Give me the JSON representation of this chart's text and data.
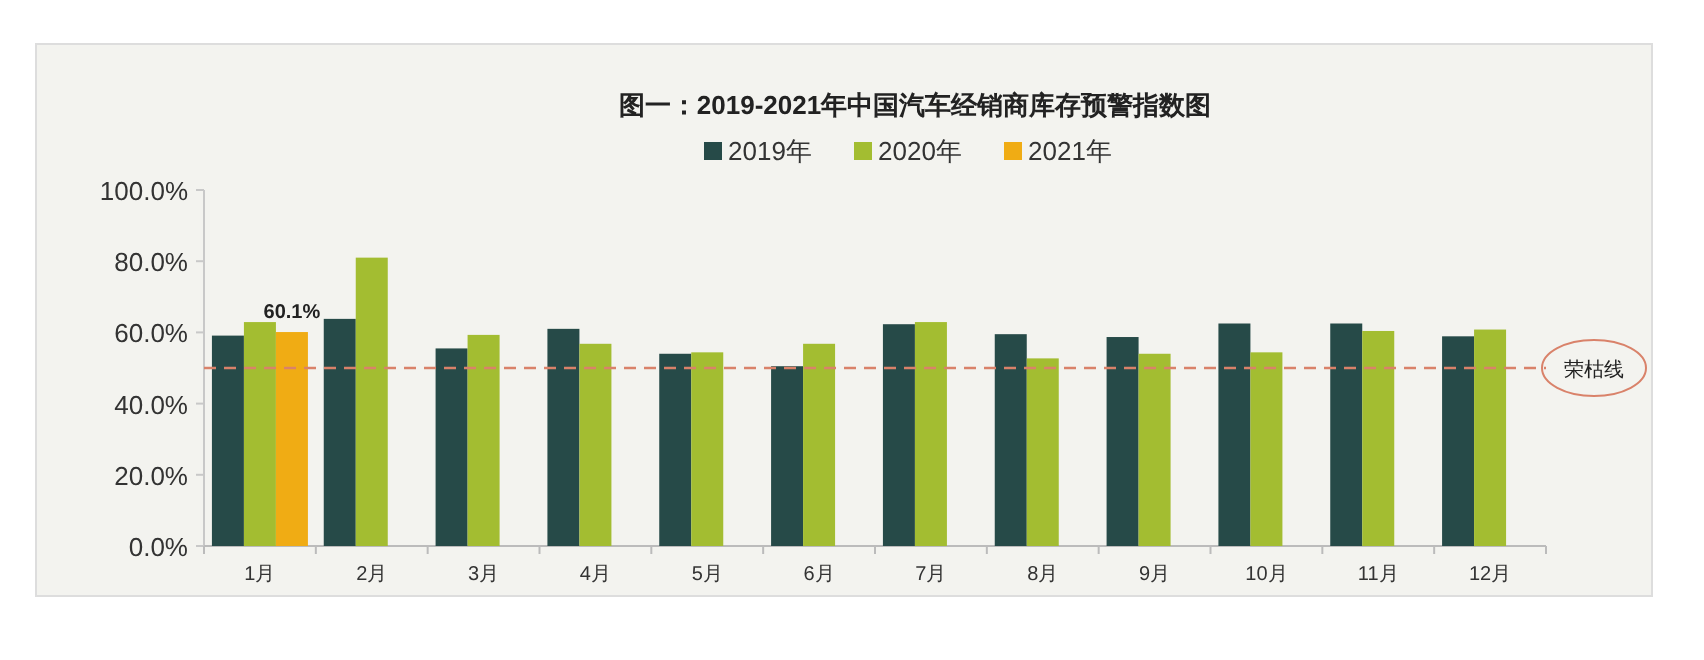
{
  "chart_data": {
    "type": "bar",
    "title": "图一：2019-2021年中国汽车经销商库存预警指数图",
    "categories": [
      "1月",
      "2月",
      "3月",
      "4月",
      "5月",
      "6月",
      "7月",
      "8月",
      "9月",
      "10月",
      "11月",
      "12月"
    ],
    "series": [
      {
        "name": "2019年",
        "color": "#264a48",
        "values": [
          59.1,
          63.8,
          55.5,
          61.0,
          54.0,
          50.5,
          62.3,
          59.5,
          58.7,
          62.5,
          62.5,
          58.9
        ]
      },
      {
        "name": "2020年",
        "color": "#a3bd31",
        "values": [
          62.9,
          81.0,
          59.3,
          56.8,
          54.4,
          56.8,
          62.9,
          52.7,
          54.0,
          54.4,
          60.4,
          60.8
        ]
      },
      {
        "name": "2021年",
        "color": "#f0ac14",
        "values": [
          60.1,
          null,
          null,
          null,
          null,
          null,
          null,
          null,
          null,
          null,
          null,
          null
        ],
        "value_labels": [
          "60.1%",
          null,
          null,
          null,
          null,
          null,
          null,
          null,
          null,
          null,
          null,
          null
        ]
      }
    ],
    "ylim": [
      0,
      100
    ],
    "yticks": [
      {
        "value": 0,
        "label": "0.0%"
      },
      {
        "value": 20,
        "label": "20.0%"
      },
      {
        "value": 40,
        "label": "40.0%"
      },
      {
        "value": 60,
        "label": "60.0%"
      },
      {
        "value": 80,
        "label": "80.0%"
      },
      {
        "value": 100,
        "label": "100.0%"
      }
    ],
    "ref_lines": [
      {
        "axis": "y",
        "value": 50,
        "label": "荣枯线",
        "color": "#d9826a",
        "line_style": "dashed"
      }
    ],
    "legend": "top",
    "grid": false
  }
}
